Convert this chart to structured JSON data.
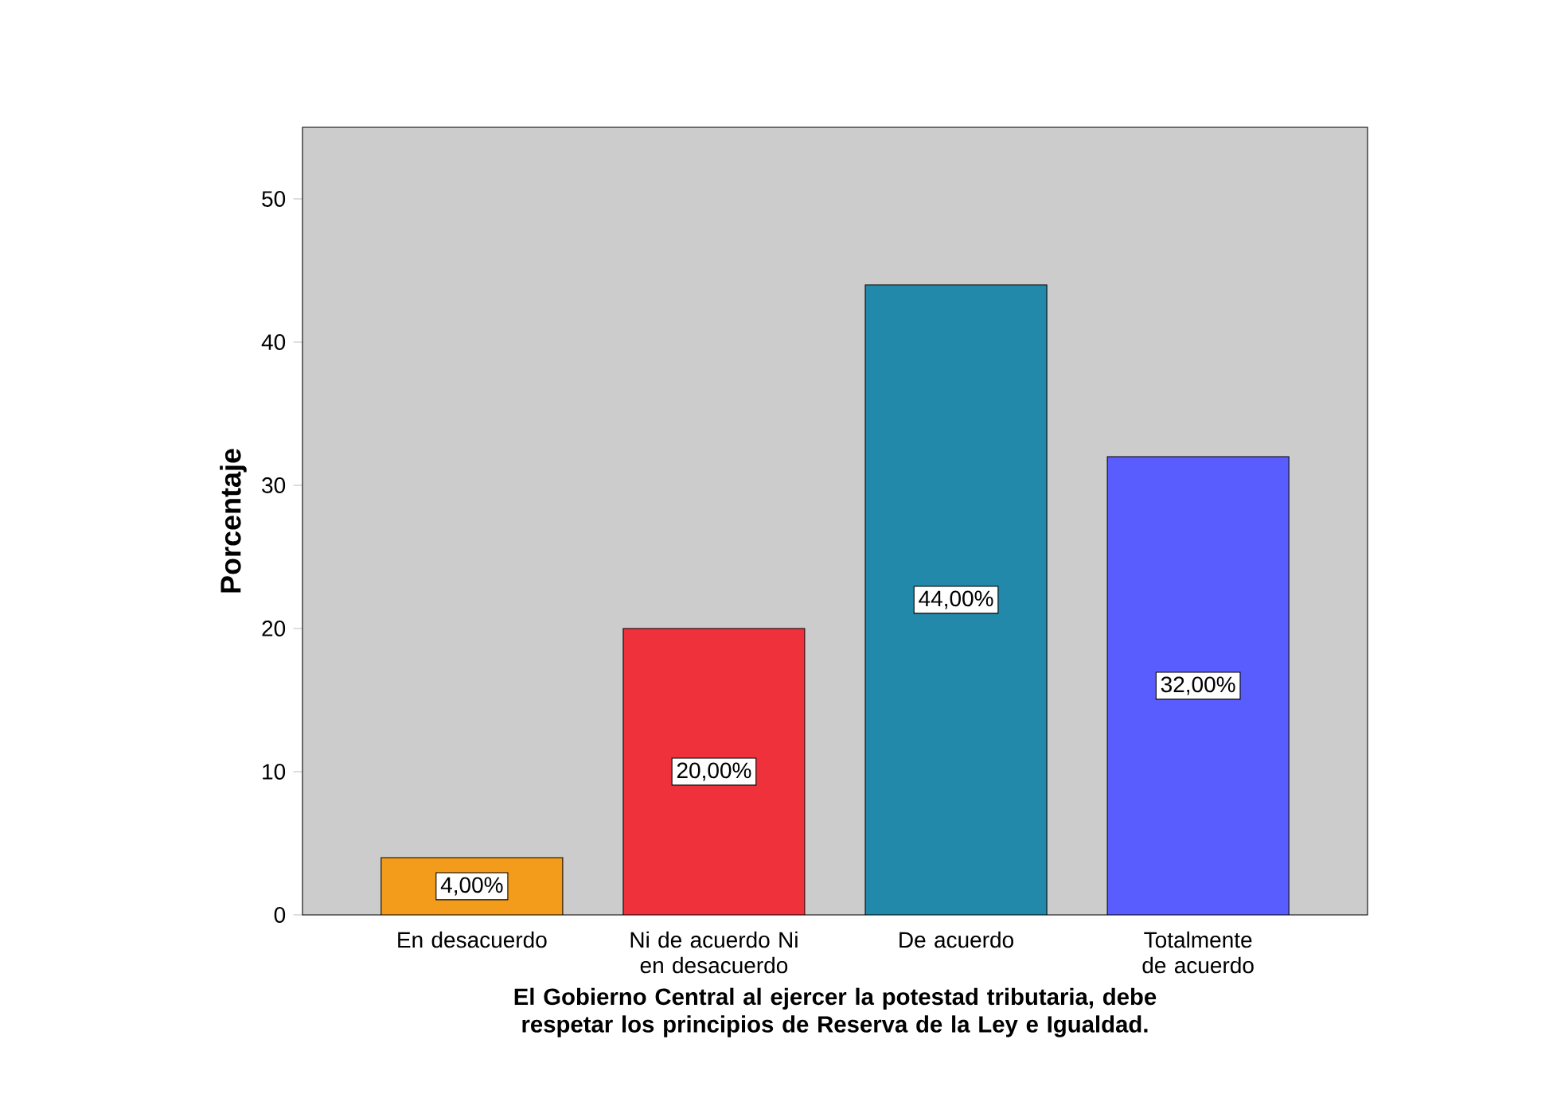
{
  "chart_data": {
    "type": "bar",
    "xlabel": "El Gobierno Central al ejercer la potestad tributaria, debe respetar los principios de Reserva de la Ley e Igualdad.",
    "ylabel": "Porcentaje",
    "categories": [
      "En desacuerdo",
      "Ni de acuerdo Ni en desacuerdo",
      "De acuerdo",
      "Totalmente de acuerdo"
    ],
    "values": [
      4,
      20,
      44,
      32
    ],
    "colors": [
      "#f39c1c",
      "#ee313b",
      "#2389ab",
      "#5a5dfd"
    ],
    "value_labels": [
      "4,00%",
      "20,00%",
      "44,00%",
      "32,00%"
    ],
    "ylim": [
      0,
      55
    ],
    "yticks": [
      0,
      10,
      20,
      30,
      40,
      50
    ],
    "grid": false
  }
}
